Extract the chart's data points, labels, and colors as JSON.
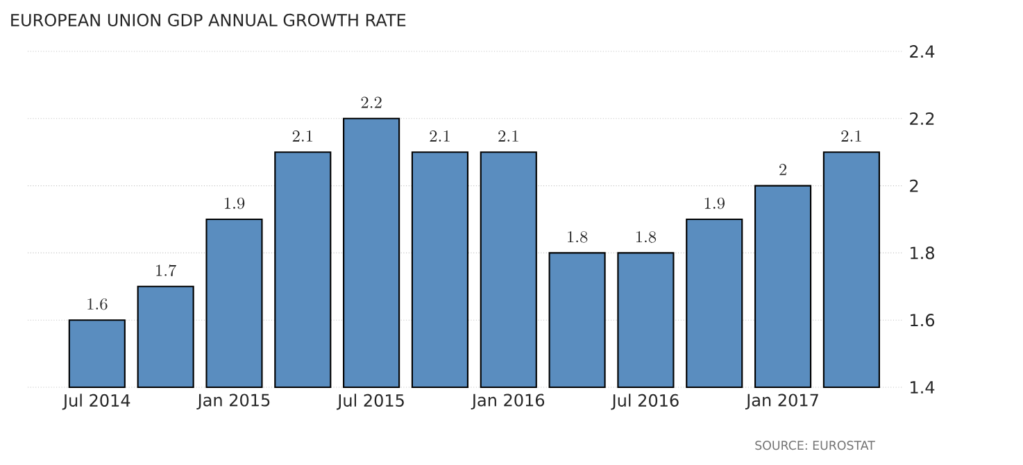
{
  "chart_data": {
    "type": "bar",
    "title": "EUROPEAN UNION GDP ANNUAL GROWTH RATE",
    "categories": [
      "Jul 2014",
      null,
      "Jan 2015",
      null,
      "Jul 2015",
      null,
      "Jan 2016",
      null,
      "Jul 2016",
      null,
      "Jan 2017",
      null
    ],
    "values": [
      1.6,
      1.7,
      1.9,
      2.1,
      2.2,
      2.1,
      2.1,
      1.8,
      1.8,
      1.9,
      2,
      2.1
    ],
    "color": "#5a8dbf",
    "ylim": [
      1.4,
      2.4
    ],
    "yticks": [
      1.4,
      1.6,
      1.8,
      2,
      2.2,
      2.4
    ],
    "grid": "y",
    "data_labels": true,
    "annotations": [
      "SOURCE: EUROSTAT"
    ]
  }
}
